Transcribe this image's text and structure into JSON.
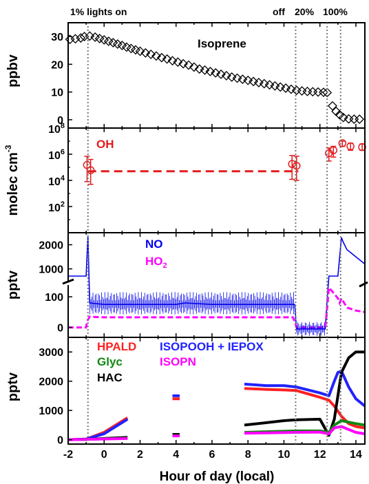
{
  "chart_data": [
    {
      "type": "scatter",
      "panel": "isoprene",
      "ylabel": "ppbv",
      "series_label": "Isoprene",
      "ylim": [
        -3,
        35
      ],
      "yticks": [
        "0",
        "10",
        "20",
        "30"
      ],
      "color": "#000000",
      "series": [
        {
          "name": "Isoprene",
          "x": [
            -1.9,
            -1.6,
            -1.3,
            -1.1,
            -0.8,
            -0.5,
            -0.25,
            0.0,
            0.25,
            0.5,
            0.75,
            1.0,
            1.25,
            1.5,
            1.75,
            2.0,
            2.3,
            2.6,
            2.9,
            3.2,
            3.5,
            3.8,
            4.1,
            4.4,
            4.7,
            5.0,
            5.3,
            5.6,
            5.9,
            6.2,
            6.5,
            6.8,
            7.1,
            7.4,
            7.7,
            8.0,
            8.3,
            8.6,
            8.9,
            9.2,
            9.5,
            9.8,
            10.1,
            10.4,
            10.7,
            11.0,
            11.3,
            11.6,
            11.9,
            12.2,
            12.4,
            12.7,
            12.9,
            13.1,
            13.3,
            13.6,
            13.9,
            14.2
          ],
          "y": [
            29,
            29.2,
            29.5,
            30,
            30.2,
            29.8,
            29.3,
            28.8,
            28.3,
            27.8,
            27.3,
            26.8,
            26.2,
            25.7,
            25.2,
            24.7,
            24.1,
            23.6,
            23.0,
            22.4,
            21.9,
            21.3,
            20.8,
            20.2,
            19.7,
            19.0,
            18.3,
            17.9,
            17.4,
            16.9,
            16.4,
            15.9,
            15.4,
            15.0,
            14.6,
            14.2,
            13.8,
            13.4,
            13.0,
            12.6,
            12.2,
            11.8,
            11.4,
            11.0,
            10.6,
            10.4,
            10.2,
            10.1,
            10.0,
            9.9,
            9.8,
            5.0,
            3.0,
            1.8,
            0.8,
            0.3,
            0.2,
            0.2
          ]
        }
      ]
    },
    {
      "type": "scatter",
      "panel": "OH",
      "ylabel": "molec cm",
      "ylabel_sup": "-3",
      "series_label": "OH",
      "yscale": "log",
      "ylim": [
        1,
        100000000
      ],
      "yticks": [
        {
          "base": "10",
          "exp": "2"
        },
        {
          "base": "10",
          "exp": "4"
        },
        {
          "base": "10",
          "exp": "6"
        },
        {
          "base": "10",
          "exp": "8"
        }
      ],
      "color": "#e41a1c",
      "series": [
        {
          "name": "OH",
          "x": [
            -0.95,
            -0.75,
            10.45,
            10.7,
            12.5,
            12.75,
            13.25,
            13.7,
            14.35
          ],
          "y": [
            150000,
            60000,
            180000,
            130000,
            1200000,
            2000000,
            7000000,
            4000000,
            3500000
          ],
          "yerr_low": [
            8000,
            5000,
            12000,
            10000,
            300000,
            600000,
            4000000,
            2000000,
            2000000
          ],
          "yerr_high": [
            700000,
            400000,
            800000,
            700000,
            3000000,
            4000000,
            10000000,
            7000000,
            6000000
          ]
        },
        {
          "name": "OH mean (dashed)",
          "x": [
            -0.9,
            10.8
          ],
          "y": [
            50000,
            50000
          ]
        }
      ]
    },
    {
      "type": "line",
      "panel": "NO_HO2",
      "ylabel": "pptv",
      "yscale": "broken",
      "yticks_lower": [
        "0",
        "100"
      ],
      "yticks_upper": [
        "1000",
        "2000"
      ],
      "legend": [
        {
          "text": "NO",
          "color": "#0000ee"
        },
        {
          "text": "HO",
          "sub": "2",
          "color": "#ff00ff"
        }
      ],
      "series": [
        {
          "name": "NO",
          "color": "#0000ee",
          "x": [
            -2.0,
            -1.0,
            -0.9,
            -0.8,
            0.0,
            2.0,
            4.0,
            4.5,
            6.0,
            8.0,
            10.0,
            10.6,
            10.7,
            11.5,
            12.3,
            12.4,
            12.5,
            13.0,
            13.1,
            13.2,
            13.3,
            13.5,
            14.0,
            14.5
          ],
          "y": [
            700,
            700,
            300,
            80,
            75,
            75,
            75,
            80,
            75,
            75,
            75,
            75,
            -5,
            -5,
            -5,
            90,
            700,
            700,
            1500,
            2300,
            2100,
            1800,
            1500,
            1200
          ]
        },
        {
          "name": "HO2",
          "color": "#ff00ff",
          "x": [
            -2.0,
            -1.0,
            -0.95,
            -0.8,
            0.0,
            2.0,
            4.0,
            6.0,
            8.0,
            10.0,
            10.5,
            10.6,
            10.7,
            12.3,
            12.4,
            12.5,
            12.8,
            13.0,
            13.1,
            13.2,
            13.5,
            14.0,
            14.5
          ],
          "y": [
            0,
            0,
            20,
            35,
            33,
            33,
            33,
            33,
            33,
            33,
            33,
            20,
            0,
            0,
            60,
            130,
            110,
            95,
            80,
            95,
            65,
            55,
            50
          ]
        }
      ]
    },
    {
      "type": "line",
      "panel": "products",
      "ylabel": "pptv",
      "xlabel": "Hour of day (local)",
      "xlim": [
        -2,
        14.5
      ],
      "xticks": [
        "-2",
        "0",
        "2",
        "4",
        "6",
        "8",
        "10",
        "12",
        "14"
      ],
      "ylim": [
        -150,
        3500
      ],
      "yticks": [
        "0",
        "1000",
        "2000",
        "3000"
      ],
      "legend": [
        {
          "text": "HPALD",
          "color": "#ff2020"
        },
        {
          "text": "Glyc",
          "color": "#118811"
        },
        {
          "text": "HAC",
          "color": "#000000"
        },
        {
          "text": "ISOPOOH + IEPOX",
          "color": "#2222ff"
        },
        {
          "text": "ISOPN",
          "color": "#ff00ff"
        }
      ],
      "series": [
        {
          "name": "HPALD",
          "color": "#ff2020",
          "x": [
            -2,
            -1,
            0,
            1.3,
            3.8,
            4.2,
            7.8,
            9.0,
            10.0,
            10.7,
            12.0,
            12.5,
            12.8,
            13.2,
            13.6,
            14.0,
            14.5
          ],
          "y": [
            0,
            20,
            250,
            750,
            1400,
            1400,
            1750,
            1720,
            1700,
            1680,
            1450,
            1350,
            1150,
            800,
            550,
            450,
            400
          ]
        },
        {
          "name": "ISOPOOH + IEPOX",
          "color": "#2222ff",
          "x": [
            -2,
            -1,
            0,
            1.3,
            3.8,
            4.2,
            7.8,
            9.0,
            10.0,
            10.7,
            12.0,
            12.5,
            12.8,
            13.0,
            13.2,
            13.6,
            14.0,
            14.5
          ],
          "y": [
            0,
            20,
            200,
            700,
            1500,
            1500,
            1900,
            1850,
            1850,
            1800,
            1600,
            1500,
            2000,
            2300,
            2350,
            1800,
            1400,
            1150
          ]
        },
        {
          "name": "HAC",
          "color": "#000000",
          "x": [
            -2,
            -1,
            0,
            1.3,
            3.8,
            4.2,
            7.8,
            9.0,
            10.0,
            10.7,
            12.0,
            12.5,
            12.8,
            13.2,
            13.6,
            14.0,
            14.5
          ],
          "y": [
            0,
            10,
            40,
            80,
            180,
            180,
            500,
            580,
            650,
            680,
            700,
            150,
            700,
            2300,
            2800,
            3000,
            3000
          ]
        },
        {
          "name": "Glyc",
          "color": "#118811",
          "x": [
            -2,
            -1,
            0,
            1.3,
            3.8,
            4.2,
            7.8,
            10.7,
            12.0,
            12.5,
            12.8,
            13.2,
            13.6,
            14.0,
            14.5
          ],
          "y": [
            0,
            10,
            30,
            50,
            140,
            140,
            250,
            300,
            300,
            250,
            500,
            650,
            600,
            550,
            500
          ]
        },
        {
          "name": "ISOPN",
          "color": "#ff00ff",
          "x": [
            -2,
            -1,
            0,
            1.3,
            3.8,
            4.2,
            7.8,
            10.7,
            12.0,
            12.5,
            12.8,
            13.2,
            13.6,
            14.0,
            14.5
          ],
          "y": [
            0,
            10,
            25,
            40,
            130,
            130,
            220,
            250,
            260,
            200,
            400,
            450,
            350,
            250,
            200
          ]
        }
      ]
    }
  ],
  "annotations": {
    "lights_on": "1% lights on",
    "off": "off",
    "twenty": "20%",
    "hundred": "100%"
  },
  "event_lines": [
    -0.9,
    10.65,
    12.4,
    13.15
  ]
}
